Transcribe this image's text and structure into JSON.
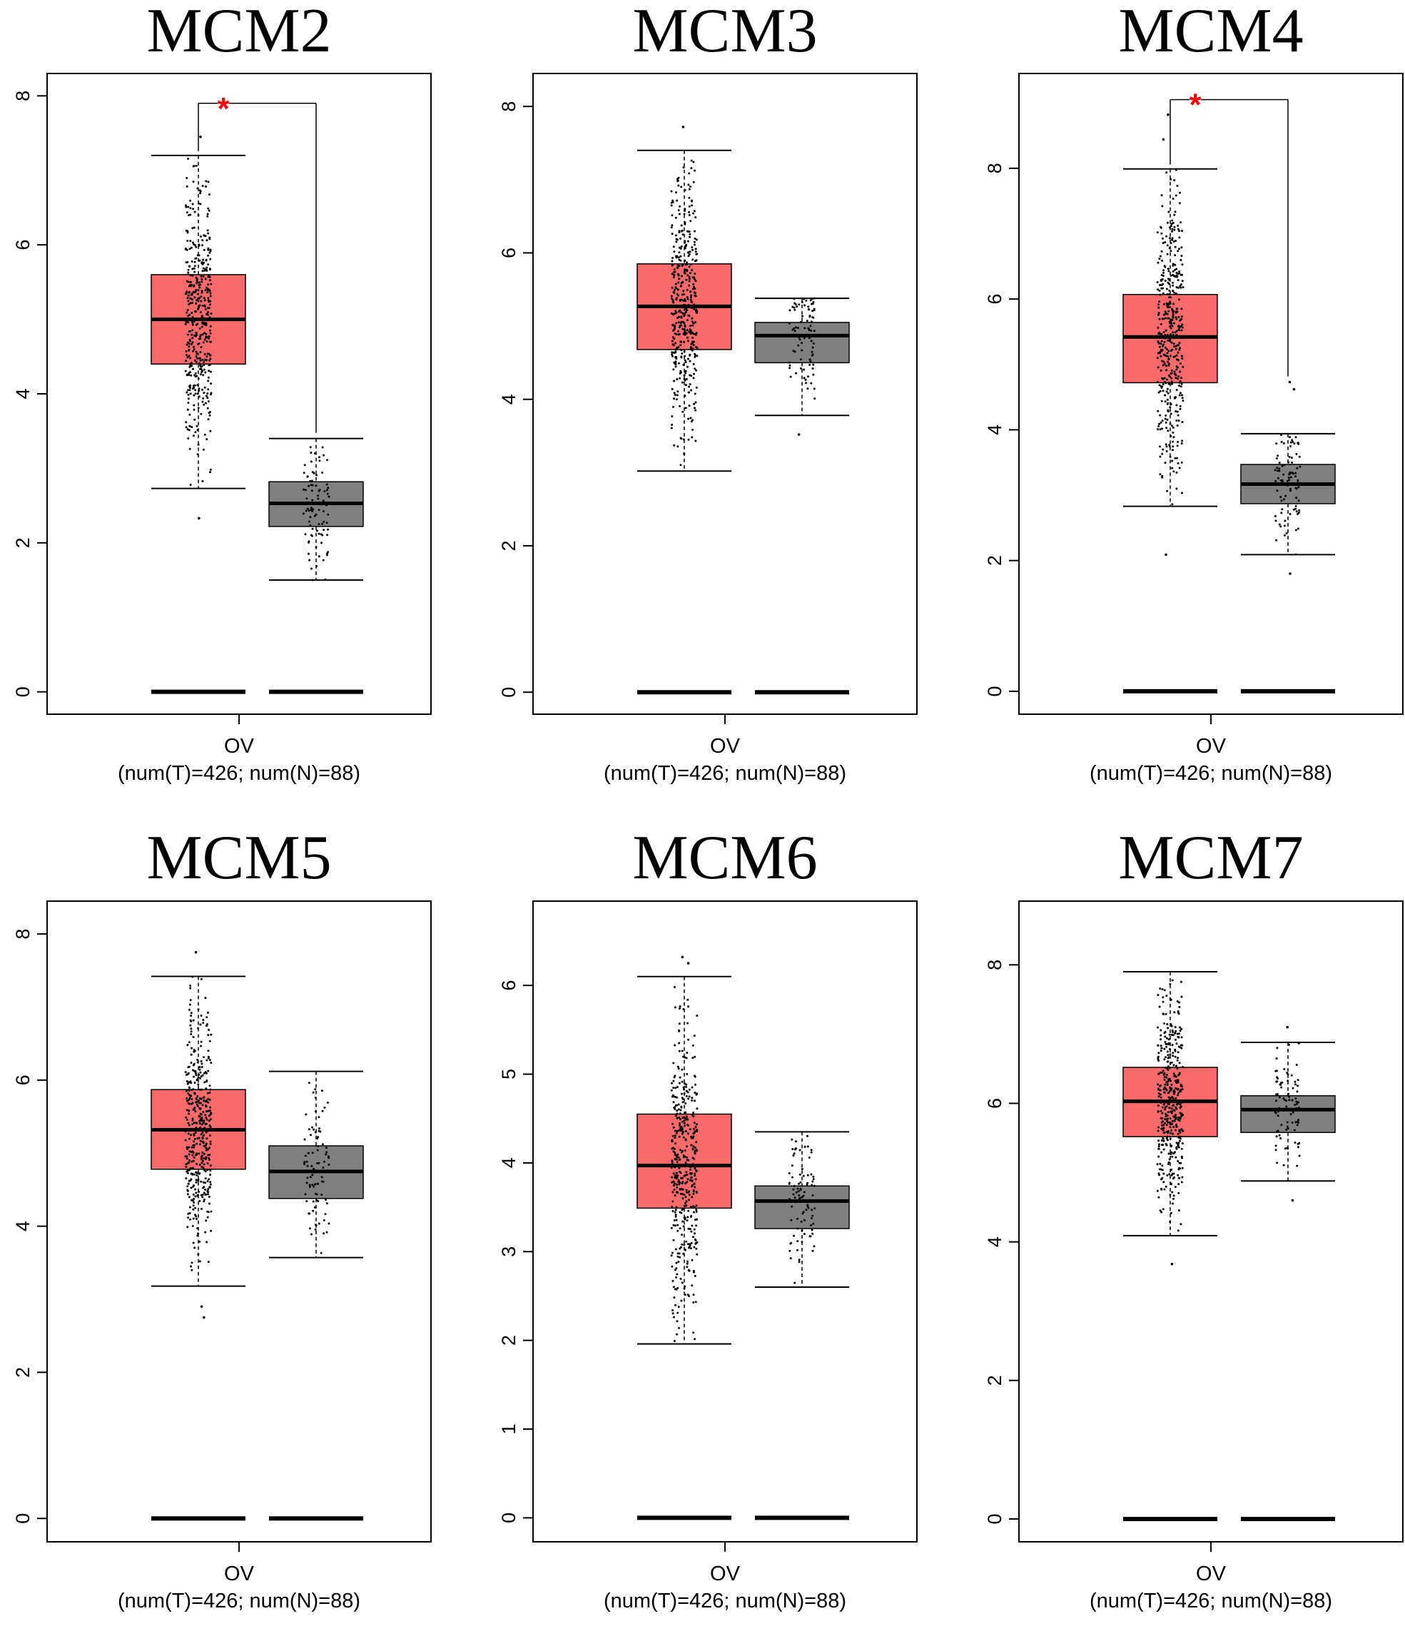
{
  "figure": {
    "colors": {
      "tumor": "#f96a6a",
      "normal": "#808080",
      "star": "#ff0000",
      "axis": "#000000",
      "points": "#000000"
    }
  },
  "chart_data": [
    {
      "type": "box",
      "title": "MCM2",
      "xlabel": "OV",
      "xsub": "(num(T)=426; num(N)=88)",
      "ylim": [
        -0.3,
        8.3
      ],
      "yticks": [
        0,
        2,
        4,
        6,
        8
      ],
      "tumor": {
        "n": 426,
        "min": 2.73,
        "q1": 4.4,
        "median": 5.0,
        "q3": 5.6,
        "max": 7.2,
        "outliers": [
          2.33,
          7.45
        ]
      },
      "normal": {
        "n": 88,
        "min": 1.5,
        "q1": 2.22,
        "median": 2.53,
        "q3": 2.82,
        "max": 3.4,
        "outliers": []
      },
      "significance": "*",
      "bracket_y": 7.9
    },
    {
      "type": "box",
      "title": "MCM3",
      "xlabel": "OV",
      "xsub": "(num(T)=426; num(N)=88)",
      "ylim": [
        -0.3,
        8.45
      ],
      "yticks": [
        0,
        2,
        4,
        6,
        8
      ],
      "tumor": {
        "n": 426,
        "min": 3.02,
        "q1": 4.68,
        "median": 5.27,
        "q3": 5.85,
        "max": 7.4,
        "outliers": [
          7.72
        ]
      },
      "normal": {
        "n": 88,
        "min": 3.78,
        "q1": 4.5,
        "median": 4.87,
        "q3": 5.05,
        "max": 5.38,
        "outliers": [
          3.52
        ]
      },
      "significance": "",
      "bracket_y": null
    },
    {
      "type": "box",
      "title": "MCM4",
      "xlabel": "OV",
      "xsub": "(num(T)=426; num(N)=88)",
      "ylim": [
        -0.35,
        9.45
      ],
      "yticks": [
        0,
        2,
        4,
        6,
        8
      ],
      "tumor": {
        "n": 426,
        "min": 2.83,
        "q1": 4.72,
        "median": 5.42,
        "q3": 6.07,
        "max": 7.99,
        "outliers": [
          2.09,
          8.44,
          8.82
        ]
      },
      "normal": {
        "n": 88,
        "min": 2.09,
        "q1": 2.87,
        "median": 3.17,
        "q3": 3.47,
        "max": 3.94,
        "outliers": [
          1.8,
          4.62,
          4.73
        ]
      },
      "significance": "*",
      "bracket_y": 9.05
    },
    {
      "type": "box",
      "title": "MCM5",
      "xlabel": "OV",
      "xsub": "(num(T)=426; num(N)=88)",
      "ylim": [
        -0.32,
        8.45
      ],
      "yticks": [
        0,
        2,
        4,
        6,
        8
      ],
      "tumor": {
        "n": 426,
        "min": 3.18,
        "q1": 4.78,
        "median": 5.32,
        "q3": 5.87,
        "max": 7.42,
        "outliers": [
          2.75,
          2.9,
          7.75
        ]
      },
      "normal": {
        "n": 88,
        "min": 3.57,
        "q1": 4.38,
        "median": 4.75,
        "q3": 5.1,
        "max": 6.12,
        "outliers": []
      },
      "significance": "",
      "bracket_y": null
    },
    {
      "type": "box",
      "title": "MCM6",
      "xlabel": "OV",
      "xsub": "(num(T)=426; num(N)=88)",
      "ylim": [
        -0.27,
        6.95
      ],
      "yticks": [
        0,
        1,
        2,
        3,
        4,
        5,
        6
      ],
      "tumor": {
        "n": 426,
        "min": 1.96,
        "q1": 3.49,
        "median": 3.97,
        "q3": 4.55,
        "max": 6.1,
        "outliers": [
          6.25,
          6.32
        ]
      },
      "normal": {
        "n": 88,
        "min": 2.6,
        "q1": 3.26,
        "median": 3.57,
        "q3": 3.74,
        "max": 4.35,
        "outliers": []
      },
      "significance": "",
      "bracket_y": null
    },
    {
      "type": "box",
      "title": "MCM7",
      "xlabel": "OV",
      "xsub": "(num(T)=426; num(N)=88)",
      "ylim": [
        -0.33,
        8.92
      ],
      "yticks": [
        0,
        2,
        4,
        6,
        8
      ],
      "tumor": {
        "n": 426,
        "min": 4.09,
        "q1": 5.52,
        "median": 6.03,
        "q3": 6.52,
        "max": 7.9,
        "outliers": [
          3.68
        ]
      },
      "normal": {
        "n": 88,
        "min": 4.88,
        "q1": 5.58,
        "median": 5.91,
        "q3": 6.11,
        "max": 6.88,
        "outliers": [
          4.6,
          7.1
        ]
      },
      "significance": "",
      "bracket_y": null
    }
  ]
}
